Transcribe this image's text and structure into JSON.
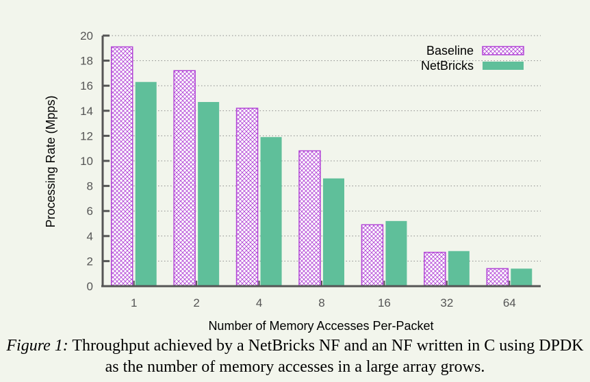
{
  "chart_data": {
    "type": "bar",
    "title": "",
    "xlabel": "Number of Memory Accesses Per-Packet",
    "ylabel": "Processing Rate (Mpps)",
    "categories": [
      "1",
      "2",
      "4",
      "8",
      "16",
      "32",
      "64"
    ],
    "yticks": [
      "0",
      "2",
      "4",
      "6",
      "8",
      "10",
      "12",
      "14",
      "16",
      "18",
      "20"
    ],
    "ylim": [
      0,
      20
    ],
    "grid": true,
    "legend_position": "top-right",
    "series": [
      {
        "name": "Baseline",
        "values": [
          19.1,
          17.2,
          14.2,
          10.8,
          4.9,
          2.7,
          1.4
        ],
        "color": "#b245d6",
        "pattern": "crosshatch"
      },
      {
        "name": "NetBricks",
        "values": [
          16.3,
          14.7,
          11.9,
          8.6,
          5.2,
          2.8,
          1.4
        ],
        "color": "#5fbf9a",
        "pattern": "solid"
      }
    ]
  },
  "caption": {
    "label": "Figure 1:",
    "text": " Throughput achieved by a NetBricks NF and an NF written in C using DPDK as the number of memory accesses in a large array grows."
  }
}
